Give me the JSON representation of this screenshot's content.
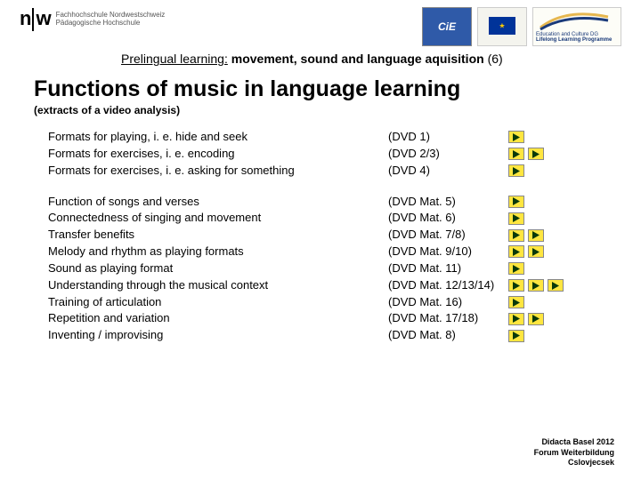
{
  "header": {
    "nw_logo_left": "n",
    "nw_logo_right": "w",
    "fh_line1": "Fachhochschule Nordwestschweiz",
    "fh_line2": "Pädagogische Hochschule",
    "cie_label": "CiE",
    "llp_line1": "Education and Culture DG",
    "llp_line2": "Lifelong Learning Programme"
  },
  "subheader": {
    "prefix": "Prelingual learning:",
    "bold": " movement, sound and language aquisition ",
    "suffix": "(6)"
  },
  "title": "Functions of music in language learning",
  "subtitle": "(extracts of a video analysis)",
  "blocks": [
    {
      "rows": [
        {
          "text": "Formats for playing, i. e. hide and seek",
          "dvd": "(DVD 1)",
          "plays": 1
        },
        {
          "text": "Formats for exercises, i. e. encoding",
          "dvd": "(DVD 2/3)",
          "plays": 2
        },
        {
          "text": "Formats for exercises, i. e. asking for something",
          "dvd": "(DVD 4)",
          "plays": 1
        }
      ]
    },
    {
      "rows": [
        {
          "text": "Function of songs and verses",
          "dvd": "(DVD Mat. 5)",
          "plays": 1
        },
        {
          "text": "Connectedness of singing and movement",
          "dvd": "(DVD Mat. 6)",
          "plays": 1
        },
        {
          "text": "Transfer benefits",
          "dvd": "(DVD Mat. 7/8)",
          "plays": 2
        },
        {
          "text": "Melody and rhythm as playing formats",
          "dvd": "(DVD Mat. 9/10)",
          "plays": 2
        },
        {
          "text": "Sound as playing format",
          "dvd": "(DVD Mat. 11)",
          "plays": 1
        },
        {
          "text": "Understanding through the musical context",
          "dvd": "(DVD Mat. 12/13/14)",
          "plays": 3
        },
        {
          "text": "Training of articulation",
          "dvd": "(DVD Mat. 16)",
          "plays": 1
        },
        {
          "text": "Repetition and variation",
          "dvd": "(DVD Mat. 17/18)",
          "plays": 2
        },
        {
          "text": "Inventing / improvising",
          "dvd": "(DVD Mat. 8)",
          "plays": 1
        }
      ]
    }
  ],
  "footer": {
    "line1": "Didacta Basel 2012",
    "line2": "Forum Weiterbildung",
    "line3": "Cslovjecsek"
  },
  "colors": {
    "play_bg": "#ffe640",
    "play_triangle": "#0a3a0a"
  }
}
